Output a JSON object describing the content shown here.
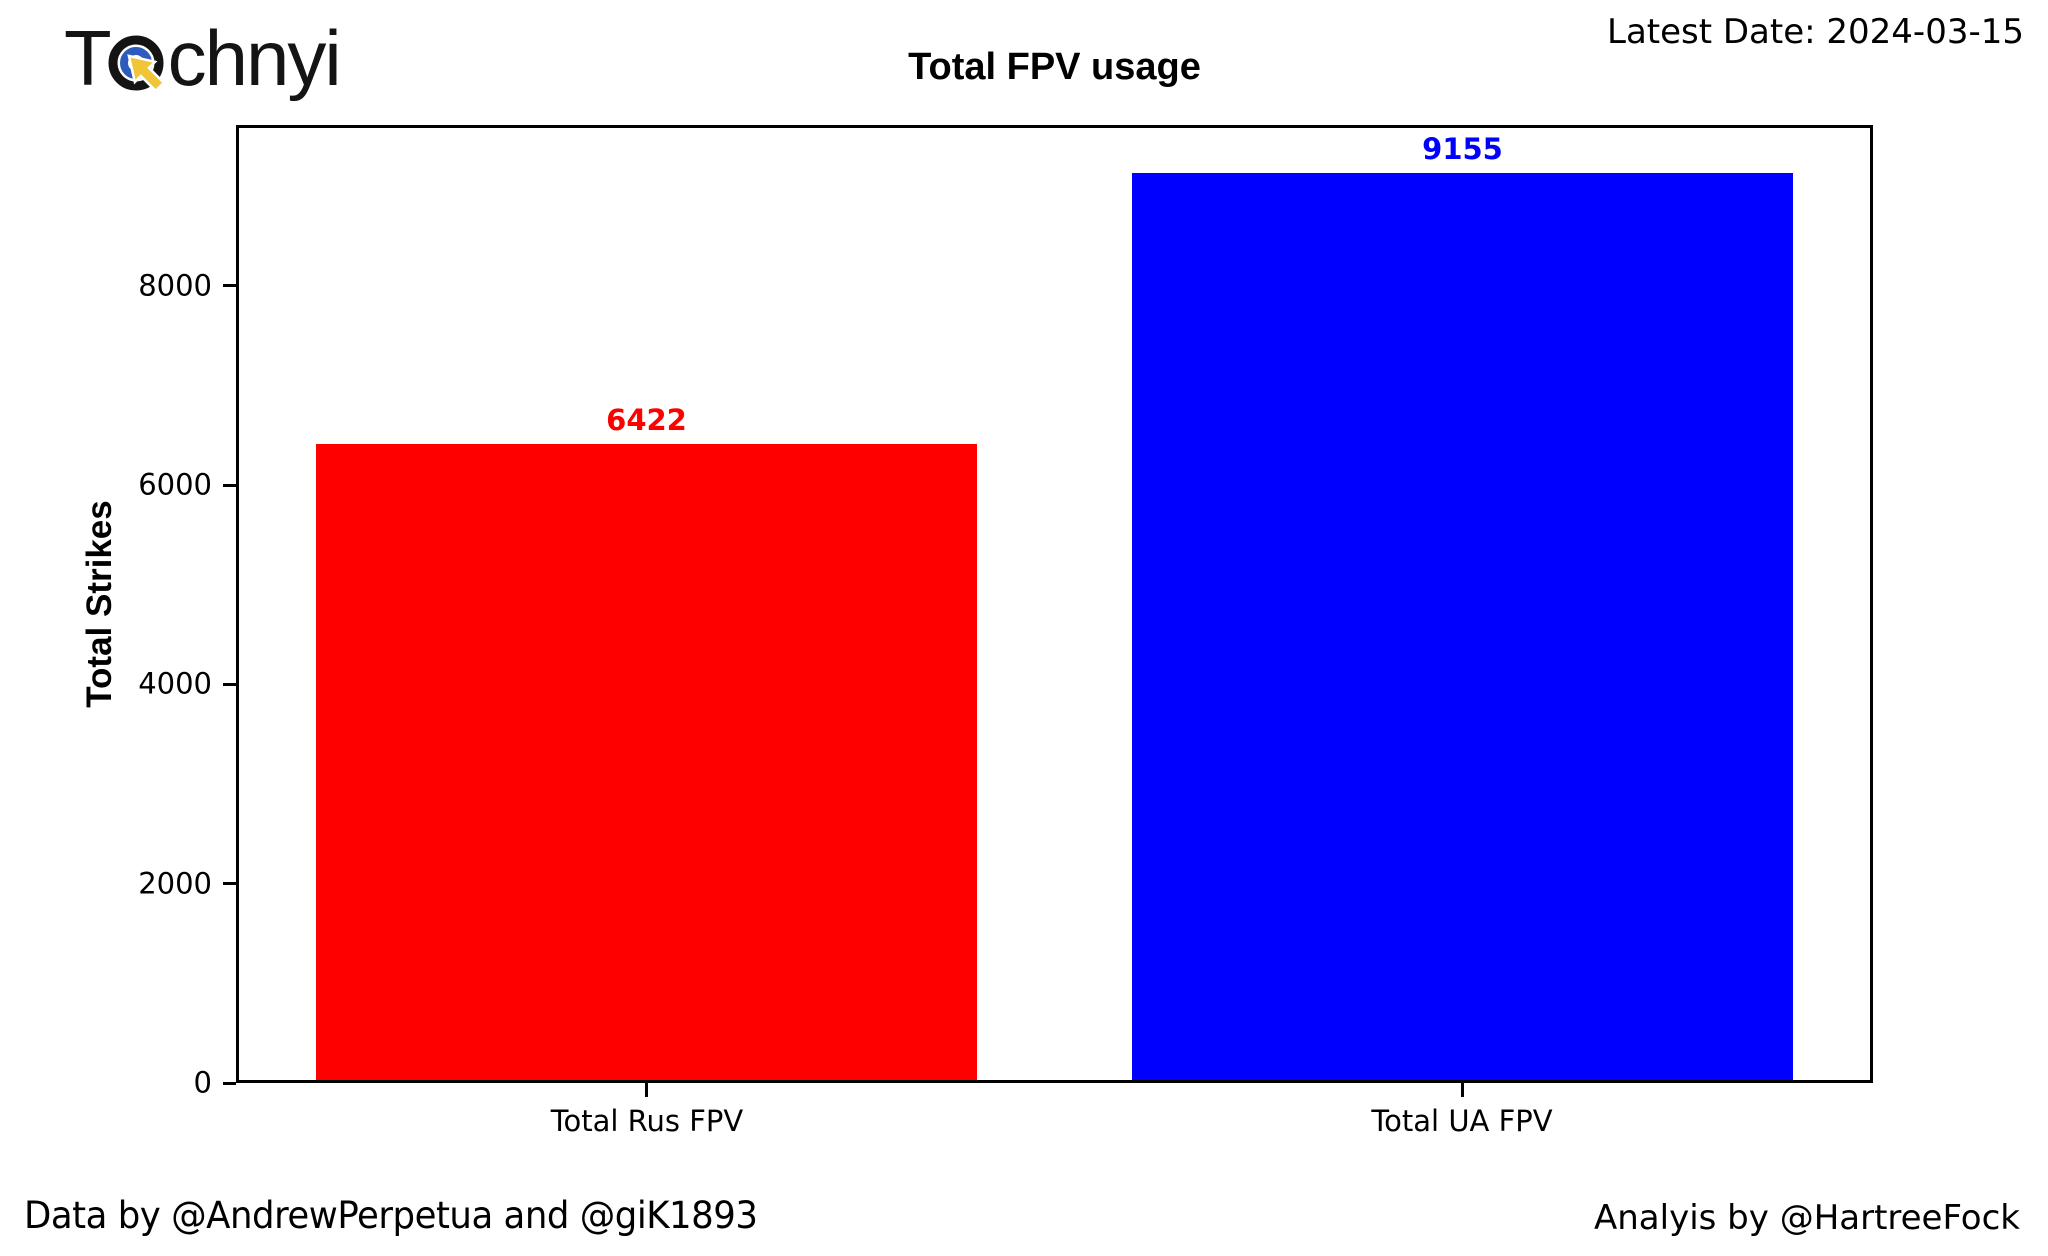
{
  "header": {
    "logo_prefix": "T",
    "logo_suffix": "chnyi",
    "latest_date": "Latest Date: 2024-03-15",
    "title": "Total FPV usage"
  },
  "footer": {
    "data_credit": "Data by @AndrewPerpetua and @giK1893",
    "analysis_credit": "Analyis by @HartreeFock"
  },
  "chart_data": {
    "type": "bar",
    "title": "Total FPV usage",
    "categories": [
      "Total Rus FPV",
      "Total UA FPV"
    ],
    "values": [
      6422,
      9155
    ],
    "bar_colors": [
      "#ff0000",
      "#0000ff"
    ],
    "value_label_colors": [
      "#ff0000",
      "#0000ff"
    ],
    "xlabel": "",
    "ylabel": "Total Strikes",
    "ylim": [
      0,
      9613
    ],
    "yticks": [
      0,
      2000,
      4000,
      6000,
      8000
    ],
    "grid": false,
    "legend": false,
    "bar_width_fraction": 0.405
  },
  "colors": {
    "background": "#ffffff",
    "axis": "#000000",
    "text": "#000000",
    "logo_ring_outer": "#141414",
    "logo_ring_inner": "#2d5cbe",
    "logo_cursor": "#f0c538"
  }
}
